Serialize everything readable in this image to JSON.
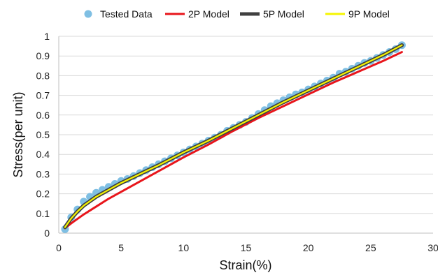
{
  "chart_data": {
    "type": "scatter",
    "xlabel": "Strain(%)",
    "ylabel": "Stress(per unit)",
    "xlim": [
      0,
      30
    ],
    "ylim": [
      0,
      1
    ],
    "xticks": [
      "0",
      "5",
      "10",
      "15",
      "20",
      "25",
      "30"
    ],
    "yticks": [
      "0",
      "0.1",
      "0.2",
      "0.3",
      "0.4",
      "0.5",
      "0.6",
      "0.7",
      "0.8",
      "0.9",
      "1"
    ],
    "grid": "horizontal",
    "legend": "top",
    "series": [
      {
        "name": "Tested Data",
        "kind": "scatter",
        "color": "#7fbfe3",
        "x": [
          0.5,
          1.0,
          1.5,
          2.0,
          2.5,
          3.0,
          3.5,
          4.0,
          4.5,
          5.0,
          5.5,
          6.0,
          6.5,
          7.0,
          7.5,
          8.0,
          8.5,
          9.0,
          9.5,
          10.0,
          10.5,
          11.0,
          11.5,
          12.0,
          12.5,
          13.0,
          13.5,
          14.0,
          14.5,
          15.0,
          15.5,
          16.0,
          16.5,
          17.0,
          17.5,
          18.0,
          18.5,
          19.0,
          19.5,
          20.0,
          20.5,
          21.0,
          21.5,
          22.0,
          22.5,
          23.0,
          23.5,
          24.0,
          24.5,
          25.0,
          25.5,
          26.0,
          26.5,
          27.0,
          27.5
        ],
        "y": [
          0.02,
          0.08,
          0.12,
          0.16,
          0.185,
          0.205,
          0.22,
          0.235,
          0.25,
          0.265,
          0.275,
          0.29,
          0.305,
          0.32,
          0.335,
          0.35,
          0.365,
          0.38,
          0.395,
          0.41,
          0.425,
          0.44,
          0.455,
          0.47,
          0.485,
          0.5,
          0.52,
          0.535,
          0.55,
          0.565,
          0.585,
          0.605,
          0.625,
          0.645,
          0.66,
          0.675,
          0.69,
          0.705,
          0.715,
          0.73,
          0.745,
          0.76,
          0.775,
          0.79,
          0.81,
          0.82,
          0.835,
          0.85,
          0.865,
          0.875,
          0.89,
          0.905,
          0.92,
          0.935,
          0.955
        ]
      },
      {
        "name": "2P Model",
        "kind": "line",
        "color": "#e8151b",
        "x": [
          0.5,
          1,
          2,
          3,
          4,
          5,
          6,
          7,
          8,
          10,
          12,
          14,
          16,
          18,
          20,
          22,
          24,
          26,
          27.5
        ],
        "y": [
          0.025,
          0.05,
          0.095,
          0.135,
          0.175,
          0.21,
          0.245,
          0.28,
          0.315,
          0.385,
          0.45,
          0.52,
          0.585,
          0.645,
          0.705,
          0.765,
          0.82,
          0.875,
          0.92
        ]
      },
      {
        "name": "5P Model",
        "kind": "line",
        "color": "#404040",
        "x": [
          0.5,
          1,
          1.5,
          2,
          3,
          4,
          5,
          6,
          7,
          8,
          10,
          12,
          14,
          16,
          18,
          20,
          22,
          24,
          26,
          27.5
        ],
        "y": [
          0.03,
          0.075,
          0.11,
          0.14,
          0.185,
          0.22,
          0.255,
          0.285,
          0.315,
          0.345,
          0.41,
          0.47,
          0.535,
          0.6,
          0.665,
          0.725,
          0.785,
          0.845,
          0.905,
          0.955
        ]
      },
      {
        "name": "9P Model",
        "kind": "line",
        "color": "#f5f500",
        "x": [
          0.5,
          1,
          1.5,
          2,
          3,
          4,
          5,
          6,
          7,
          8,
          10,
          12,
          14,
          16,
          18,
          20,
          22,
          24,
          26,
          27.5
        ],
        "y": [
          0.03,
          0.075,
          0.11,
          0.14,
          0.185,
          0.22,
          0.255,
          0.285,
          0.315,
          0.345,
          0.41,
          0.47,
          0.535,
          0.6,
          0.665,
          0.725,
          0.785,
          0.845,
          0.905,
          0.955
        ]
      }
    ]
  }
}
